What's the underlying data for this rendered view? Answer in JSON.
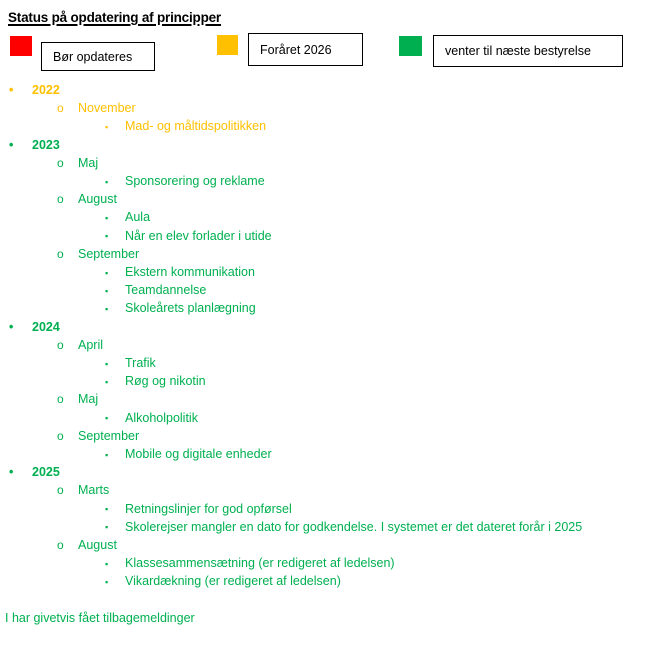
{
  "title": "Status på opdatering af principper",
  "colors": {
    "red": "#ff0000",
    "gold": "#ffc000",
    "green": "#00b050"
  },
  "legend": [
    {
      "status": "red",
      "label": "Bør opdateres"
    },
    {
      "status": "gold",
      "label": "Foråret 2026"
    },
    {
      "status": "green",
      "label": "venter til næste bestyrelse"
    }
  ],
  "bullets": {
    "year": "disc",
    "month": "circle",
    "item": "square"
  },
  "years": [
    {
      "year": "2022",
      "status": "gold",
      "months": [
        {
          "name": "November",
          "items": [
            "Mad- og måltidspolitikken"
          ]
        }
      ]
    },
    {
      "year": "2023",
      "status": "green",
      "months": [
        {
          "name": "Maj",
          "items": [
            "Sponsorering og reklame"
          ]
        },
        {
          "name": "August",
          "items": [
            "Aula",
            "Når en elev forlader i utide"
          ]
        },
        {
          "name": "September",
          "items": [
            "Ekstern kommunikation",
            "Teamdannelse",
            "Skoleårets planlægning"
          ]
        }
      ]
    },
    {
      "year": "2024",
      "status": "green",
      "months": [
        {
          "name": "April",
          "items": [
            "Trafik",
            "Røg og nikotin"
          ]
        },
        {
          "name": "Maj",
          "items": [
            "Alkoholpolitik"
          ]
        },
        {
          "name": "September",
          "items": [
            "Mobile og digitale enheder"
          ]
        }
      ]
    },
    {
      "year": "2025",
      "status": "green",
      "months": [
        {
          "name": "Marts",
          "items": [
            "Retningslinjer for god opførsel",
            "Skolerejser mangler en dato for godkendelse. I systemet er det dateret forår i 2025"
          ]
        },
        {
          "name": "August",
          "items": [
            "Klassesammensætning (er redigeret af ledelsen)",
            "Vikardækning (er redigeret af ledelsen)"
          ]
        }
      ]
    }
  ],
  "footer": "I har givetvis fået tilbagemeldinger"
}
